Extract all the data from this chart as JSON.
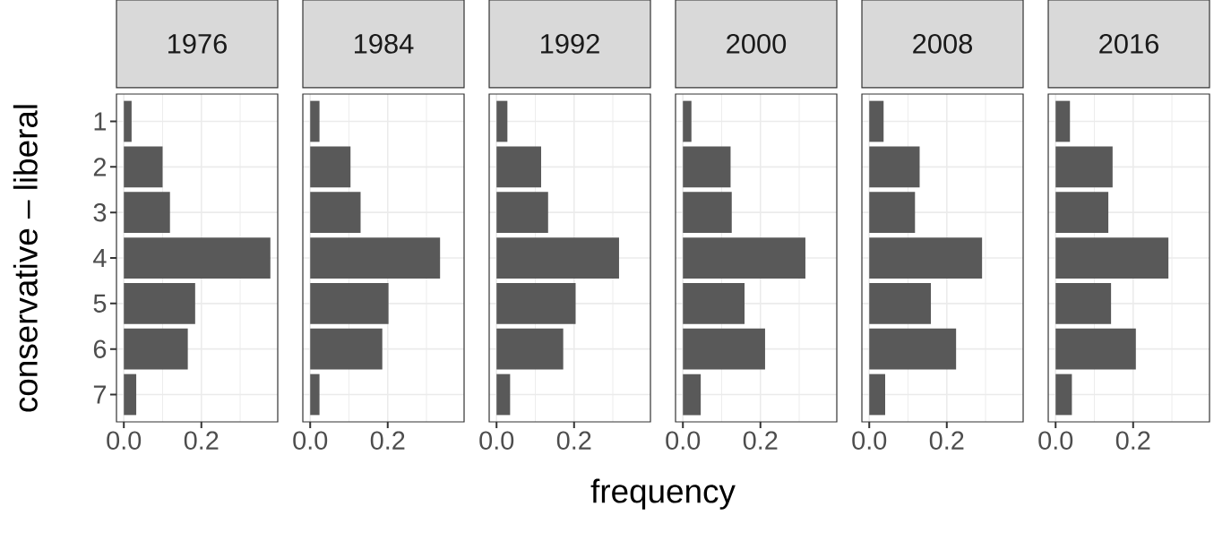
{
  "chart_data": [
    {
      "type": "bar",
      "orientation": "horizontal",
      "title": "1976",
      "ylabel": "conservative – liberal",
      "categories": [
        "1",
        "2",
        "3",
        "4",
        "5",
        "6",
        "7"
      ],
      "values": [
        0.02,
        0.1,
        0.119,
        0.378,
        0.184,
        0.165,
        0.032
      ],
      "color": "#595959",
      "xlim": [
        -0.019,
        0.397
      ],
      "xticks": [
        {
          "value": 0,
          "label": "0.0"
        },
        {
          "value": 0.1,
          "label": null
        },
        {
          "value": 0.2,
          "label": "0.2"
        },
        {
          "value": 0.3,
          "label": null
        }
      ],
      "grid": true
    },
    {
      "type": "bar",
      "orientation": "horizontal",
      "title": "1984",
      "categories": [
        "1",
        "2",
        "3",
        "4",
        "5",
        "6",
        "7"
      ],
      "values": [
        0.024,
        0.104,
        0.13,
        0.335,
        0.202,
        0.186,
        0.024
      ],
      "color": "#595959",
      "xlim": [
        -0.019,
        0.397
      ],
      "xticks": [
        {
          "value": 0,
          "label": "0.0"
        },
        {
          "value": 0.1,
          "label": null
        },
        {
          "value": 0.2,
          "label": "0.2"
        },
        {
          "value": 0.3,
          "label": null
        }
      ],
      "grid": true,
      "tick_labels": "x"
    },
    {
      "type": "bar",
      "orientation": "horizontal",
      "title": "1992",
      "xlabel": "frequency",
      "categories": [
        "1",
        "2",
        "3",
        "4",
        "5",
        "6",
        "7"
      ],
      "values": [
        0.028,
        0.115,
        0.133,
        0.316,
        0.204,
        0.172,
        0.035
      ],
      "color": "#595959",
      "xlim": [
        -0.019,
        0.397
      ],
      "xticks": [
        {
          "value": 0,
          "label": "0.0"
        },
        {
          "value": 0.1,
          "label": null
        },
        {
          "value": 0.2,
          "label": "0.2"
        },
        {
          "value": 0.3,
          "label": null
        }
      ],
      "grid": true,
      "tick_labels": "x"
    },
    {
      "type": "bar",
      "orientation": "horizontal",
      "title": "2000",
      "categories": [
        "1",
        "2",
        "3",
        "4",
        "5",
        "6",
        "7"
      ],
      "values": [
        0.022,
        0.123,
        0.126,
        0.316,
        0.159,
        0.212,
        0.046
      ],
      "color": "#595959",
      "xlim": [
        -0.019,
        0.397
      ],
      "xticks": [
        {
          "value": 0,
          "label": "0.0"
        },
        {
          "value": 0.1,
          "label": null
        },
        {
          "value": 0.2,
          "label": "0.2"
        },
        {
          "value": 0.3,
          "label": null
        }
      ],
      "grid": true,
      "tick_labels": "x"
    },
    {
      "type": "bar",
      "orientation": "horizontal",
      "title": "2008",
      "categories": [
        "1",
        "2",
        "3",
        "4",
        "5",
        "6",
        "7"
      ],
      "values": [
        0.037,
        0.13,
        0.118,
        0.291,
        0.159,
        0.224,
        0.041
      ],
      "color": "#595959",
      "xlim": [
        -0.019,
        0.397
      ],
      "xticks": [
        {
          "value": 0,
          "label": "0.0"
        },
        {
          "value": 0.1,
          "label": null
        },
        {
          "value": 0.2,
          "label": "0.2"
        },
        {
          "value": 0.3,
          "label": null
        }
      ],
      "grid": true,
      "tick_labels": "x"
    },
    {
      "type": "bar",
      "orientation": "horizontal",
      "title": "2016",
      "categories": [
        "1",
        "2",
        "3",
        "4",
        "5",
        "6",
        "7"
      ],
      "values": [
        0.037,
        0.147,
        0.136,
        0.291,
        0.143,
        0.207,
        0.042
      ],
      "color": "#595959",
      "xlim": [
        -0.019,
        0.397
      ],
      "xticks": [
        {
          "value": 0,
          "label": "0.0"
        },
        {
          "value": 0.1,
          "label": null
        },
        {
          "value": 0.2,
          "label": "0.2"
        },
        {
          "value": 0.3,
          "label": null
        }
      ],
      "grid": true,
      "tick_labels": "x"
    }
  ]
}
